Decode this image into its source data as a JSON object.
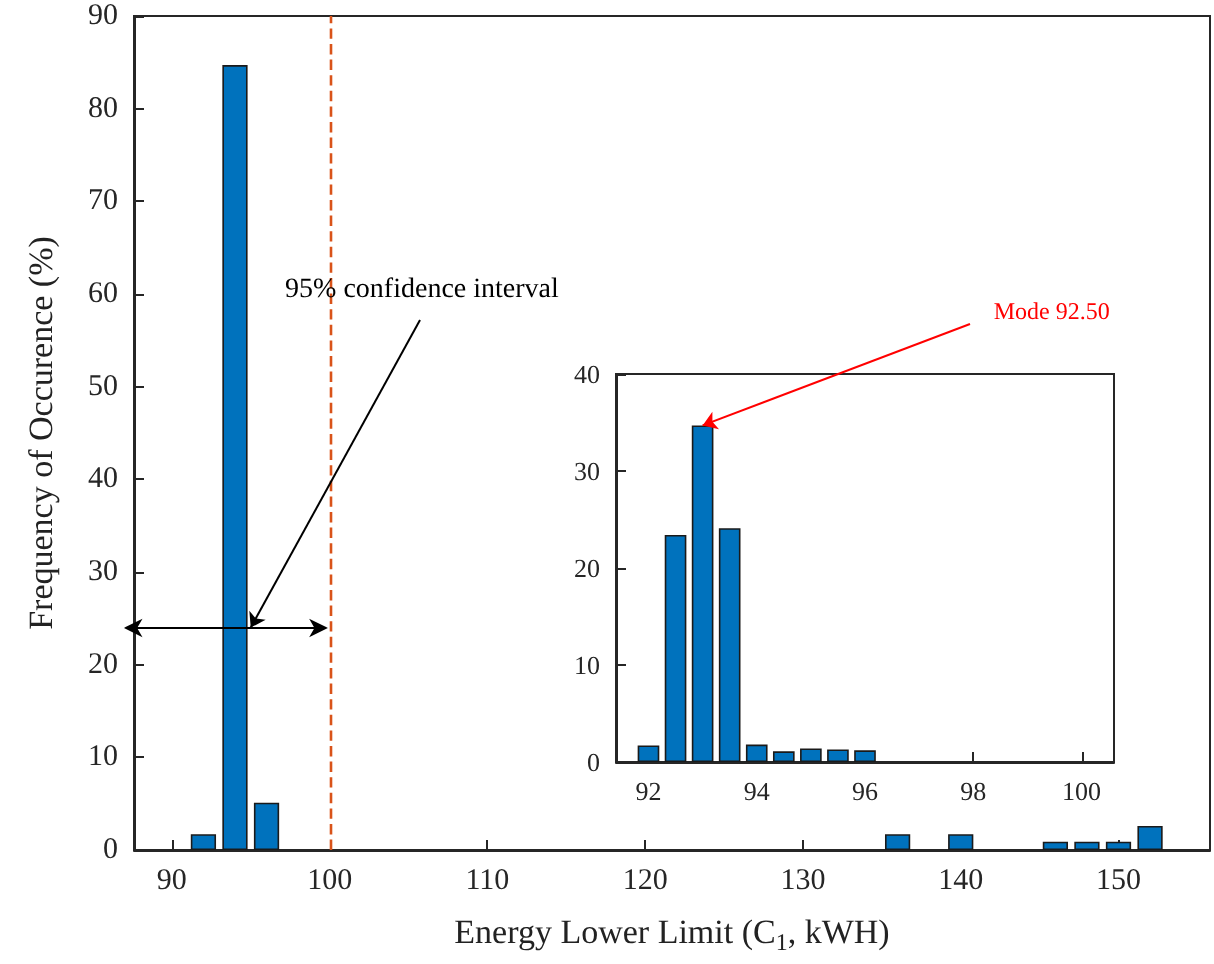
{
  "chart_data": [
    {
      "type": "bar",
      "xlabel": "Energy Lower Limit (C$_{1}$, kWH)",
      "ylabel": "Frequency of Occurence (%)",
      "x": [
        92,
        94,
        96,
        136,
        140,
        146,
        148,
        150,
        152
      ],
      "values": [
        1.7,
        84.7,
        5.1,
        1.7,
        1.7,
        0.9,
        0.9,
        0.9,
        2.6
      ],
      "color": "#0072bd",
      "xlim": [
        87.6,
        155.8
      ],
      "xticks": [
        90,
        100,
        110,
        120,
        130,
        140,
        150
      ],
      "ylim": [
        0,
        90
      ],
      "yticks": [
        0,
        10,
        20,
        30,
        40,
        50,
        60,
        70,
        80,
        90
      ],
      "ref_lines": [
        {
          "axis": "x",
          "value": 100,
          "color": "#d95319",
          "line_style": "dashed"
        }
      ],
      "annotations": [
        {
          "text": "95% confidence interval",
          "x": 95,
          "y": 24
        }
      ],
      "grid": false
    },
    {
      "type": "bar",
      "x": [
        92,
        92.5,
        93,
        93.5,
        94,
        94.5,
        95,
        95.5,
        96
      ],
      "values": [
        1.7,
        23.4,
        34.7,
        24.1,
        1.8,
        1.1,
        1.4,
        1.3,
        1.2
      ],
      "color": "#0072bd",
      "xlim": [
        91.4,
        100.6
      ],
      "xticks": [
        92,
        94,
        96,
        98,
        100
      ],
      "ylim": [
        0,
        40
      ],
      "yticks": [
        0,
        10,
        20,
        30,
        40
      ],
      "annotations": [
        {
          "text": "Mode 92.50",
          "x": 93,
          "y": 34.7
        }
      ],
      "grid": false
    }
  ]
}
